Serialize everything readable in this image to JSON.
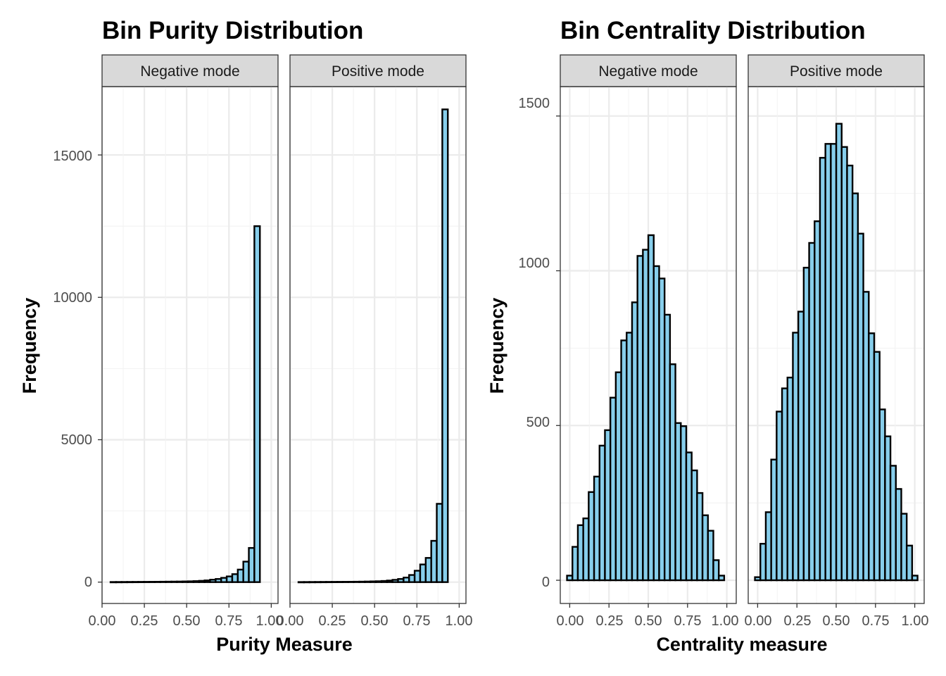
{
  "colors": {
    "bar_fill": "#87ceeb",
    "bar_outline": "#000000",
    "strip_bg": "#d9d9d9"
  },
  "chart_data": [
    {
      "type": "histogram",
      "title": "Bin Purity Distribution",
      "xlabel": "Purity Measure",
      "ylabel": "Frequency",
      "facets": [
        "Negative mode",
        "Positive mode"
      ],
      "ylim": [
        -750,
        17400
      ],
      "xlim": [
        0.0,
        1.04
      ],
      "yticks": [
        0,
        5000,
        10000,
        15000
      ],
      "ytick_labels": [
        "0",
        "5000",
        "10000",
        "15000"
      ],
      "xticks": [
        0.0,
        0.25,
        0.5,
        0.75,
        1.0
      ],
      "xtick_labels": [
        "0.00",
        "0.25",
        "0.50",
        "0.75",
        "1.00"
      ],
      "bin_start": 0.05,
      "bin_width": 0.0327,
      "series": [
        {
          "name": "Negative mode",
          "values": [
            4,
            5,
            6,
            7,
            8,
            9,
            10,
            11,
            12,
            14,
            16,
            18,
            20,
            24,
            28,
            35,
            45,
            60,
            85,
            110,
            150,
            200,
            280,
            440,
            720,
            1200,
            12500
          ]
        },
        {
          "name": "Positive mode",
          "values": [
            3,
            4,
            5,
            6,
            7,
            8,
            9,
            10,
            11,
            12,
            14,
            16,
            20,
            25,
            30,
            40,
            55,
            80,
            110,
            160,
            250,
            400,
            620,
            850,
            1450,
            2750,
            16600
          ]
        }
      ]
    },
    {
      "type": "histogram",
      "title": "Bin Centrality Distribution",
      "xlabel": "Centrality measure",
      "ylabel": "Frequency",
      "facets": [
        "Negative mode",
        "Positive mode"
      ],
      "ylim": [
        -75,
        1595
      ],
      "xlim": [
        -0.06,
        1.06
      ],
      "yticks": [
        0,
        500,
        1000,
        1500
      ],
      "ytick_labels": [
        "0",
        "500",
        "1000",
        "1500"
      ],
      "xticks": [
        0.0,
        0.25,
        0.5,
        0.75,
        1.0
      ],
      "xtick_labels": [
        "0.00",
        "0.25",
        "0.50",
        "0.75",
        "1.00"
      ],
      "bin_start": -0.0172,
      "bin_width": 0.0345,
      "series": [
        {
          "name": "Negative mode",
          "values": [
            15,
            108,
            178,
            200,
            285,
            335,
            435,
            485,
            590,
            672,
            775,
            800,
            898,
            1048,
            1068,
            1115,
            1015,
            975,
            858,
            698,
            508,
            498,
            413,
            355,
            282,
            210,
            160,
            65,
            15
          ]
        },
        {
          "name": "Positive mode",
          "values": [
            10,
            118,
            220,
            390,
            545,
            620,
            655,
            800,
            868,
            1010,
            1090,
            1160,
            1365,
            1410,
            1410,
            1475,
            1400,
            1340,
            1250,
            1120,
            932,
            798,
            738,
            552,
            465,
            370,
            295,
            215,
            112,
            15
          ]
        }
      ]
    }
  ]
}
